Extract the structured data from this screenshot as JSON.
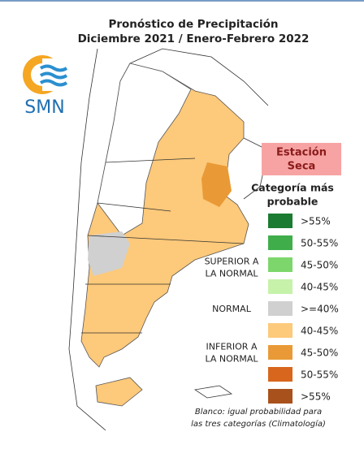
{
  "title": {
    "line1": "Pronóstico de Precipitación",
    "line2": "Diciembre 2021 / Enero-Febrero 2022"
  },
  "logo": "SMN",
  "badge": {
    "line1": "Estación",
    "line2": "Seca"
  },
  "legend": {
    "title": {
      "line1": "Categoría más",
      "line2": "probable"
    },
    "groups": [
      {
        "lines": [
          "SUPERIOR A",
          "LA NORMAL"
        ]
      },
      {
        "lines": [
          "NORMAL"
        ]
      },
      {
        "lines": [
          "INFERIOR A",
          "LA NORMAL"
        ]
      }
    ],
    "items": [
      {
        "label": ">55%",
        "color": "#1b7b30"
      },
      {
        "label": "50-55%",
        "color": "#3fae4a"
      },
      {
        "label": "45-50%",
        "color": "#7dd66c"
      },
      {
        "label": "40-45%",
        "color": "#c6f2aa"
      },
      {
        "label": ">=40%",
        "color": "#d0d0d0"
      },
      {
        "label": "40-45%",
        "color": "#fdc97a"
      },
      {
        "label": "45-50%",
        "color": "#e99a36"
      },
      {
        "label": "50-55%",
        "color": "#d8661d"
      },
      {
        "label": ">55%",
        "color": "#a9511c"
      }
    ]
  },
  "note": {
    "line1": "Blanco: igual probabilidad para",
    "line2": "las tres categorías (Climatología)"
  }
}
